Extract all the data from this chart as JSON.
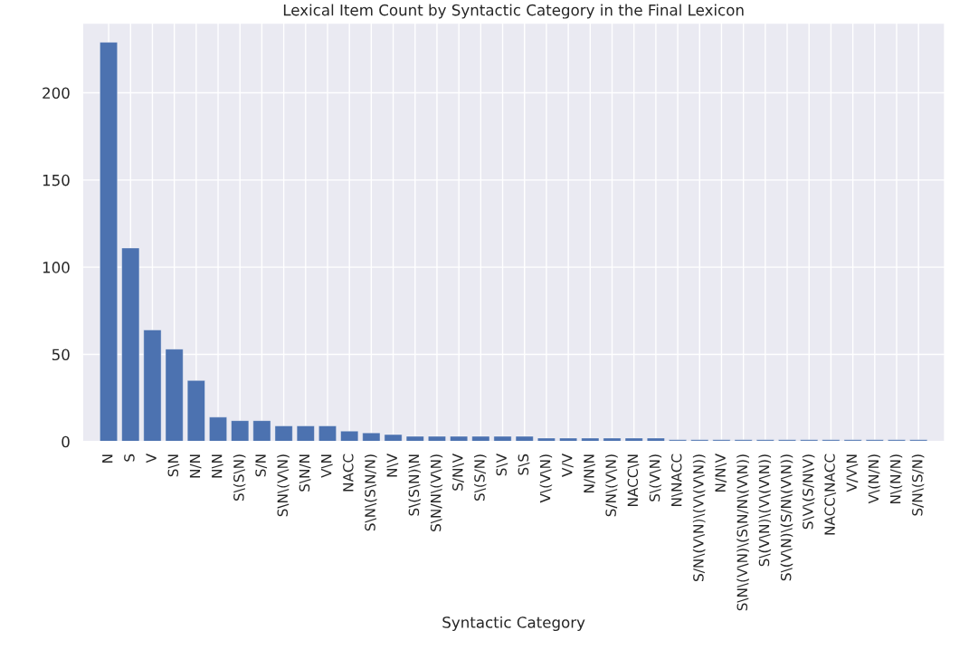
{
  "chart_data": {
    "type": "bar",
    "title": "Lexical Item Count by Syntactic Category in the Final Lexicon",
    "xlabel": "Syntactic Category",
    "categories": [
      "N",
      "S",
      "V",
      "S\\N",
      "N/N",
      "N\\N",
      "S\\(S\\N)",
      "S/N",
      "S\\N\\(V\\N)",
      "S\\N/N",
      "V\\N",
      "NACC",
      "S\\N\\(S\\N/N)",
      "N\\V",
      "S\\(S\\N)\\N",
      "S\\N/N\\(V\\N)",
      "S/N\\V",
      "S\\(S/N)",
      "S\\V",
      "S\\S",
      "V\\(V\\N)",
      "V/V",
      "N/N\\N",
      "S/N\\(V\\N)",
      "NACC\\N",
      "S\\(V\\N)",
      "N\\NACC",
      "S/N\\(V\\N)\\(V\\(V\\N))",
      "N/N\\V",
      "S\\N\\(V\\N)\\(S\\N/N\\(V\\N))",
      "S\\(V\\N)\\(V\\(V\\N))",
      "S\\(V\\N)\\(S/N\\(V\\N))",
      "S\\V\\(S/N\\V)",
      "NACC\\NACC",
      "V/V\\N",
      "V\\(N/N)",
      "N\\(N/N)",
      "S/N\\(S/N)"
    ],
    "values": [
      229,
      111,
      64,
      53,
      35,
      14,
      12,
      12,
      9,
      9,
      9,
      6,
      5,
      4,
      3,
      3,
      3,
      3,
      3,
      3,
      2,
      2,
      2,
      2,
      2,
      2,
      1,
      1,
      1,
      1,
      1,
      1,
      1,
      1,
      1,
      1,
      1,
      1
    ],
    "color": "#4c72b0",
    "ylim": [
      0,
      240
    ],
    "yticks": [
      0,
      50,
      100,
      150,
      200
    ],
    "grid": true
  }
}
